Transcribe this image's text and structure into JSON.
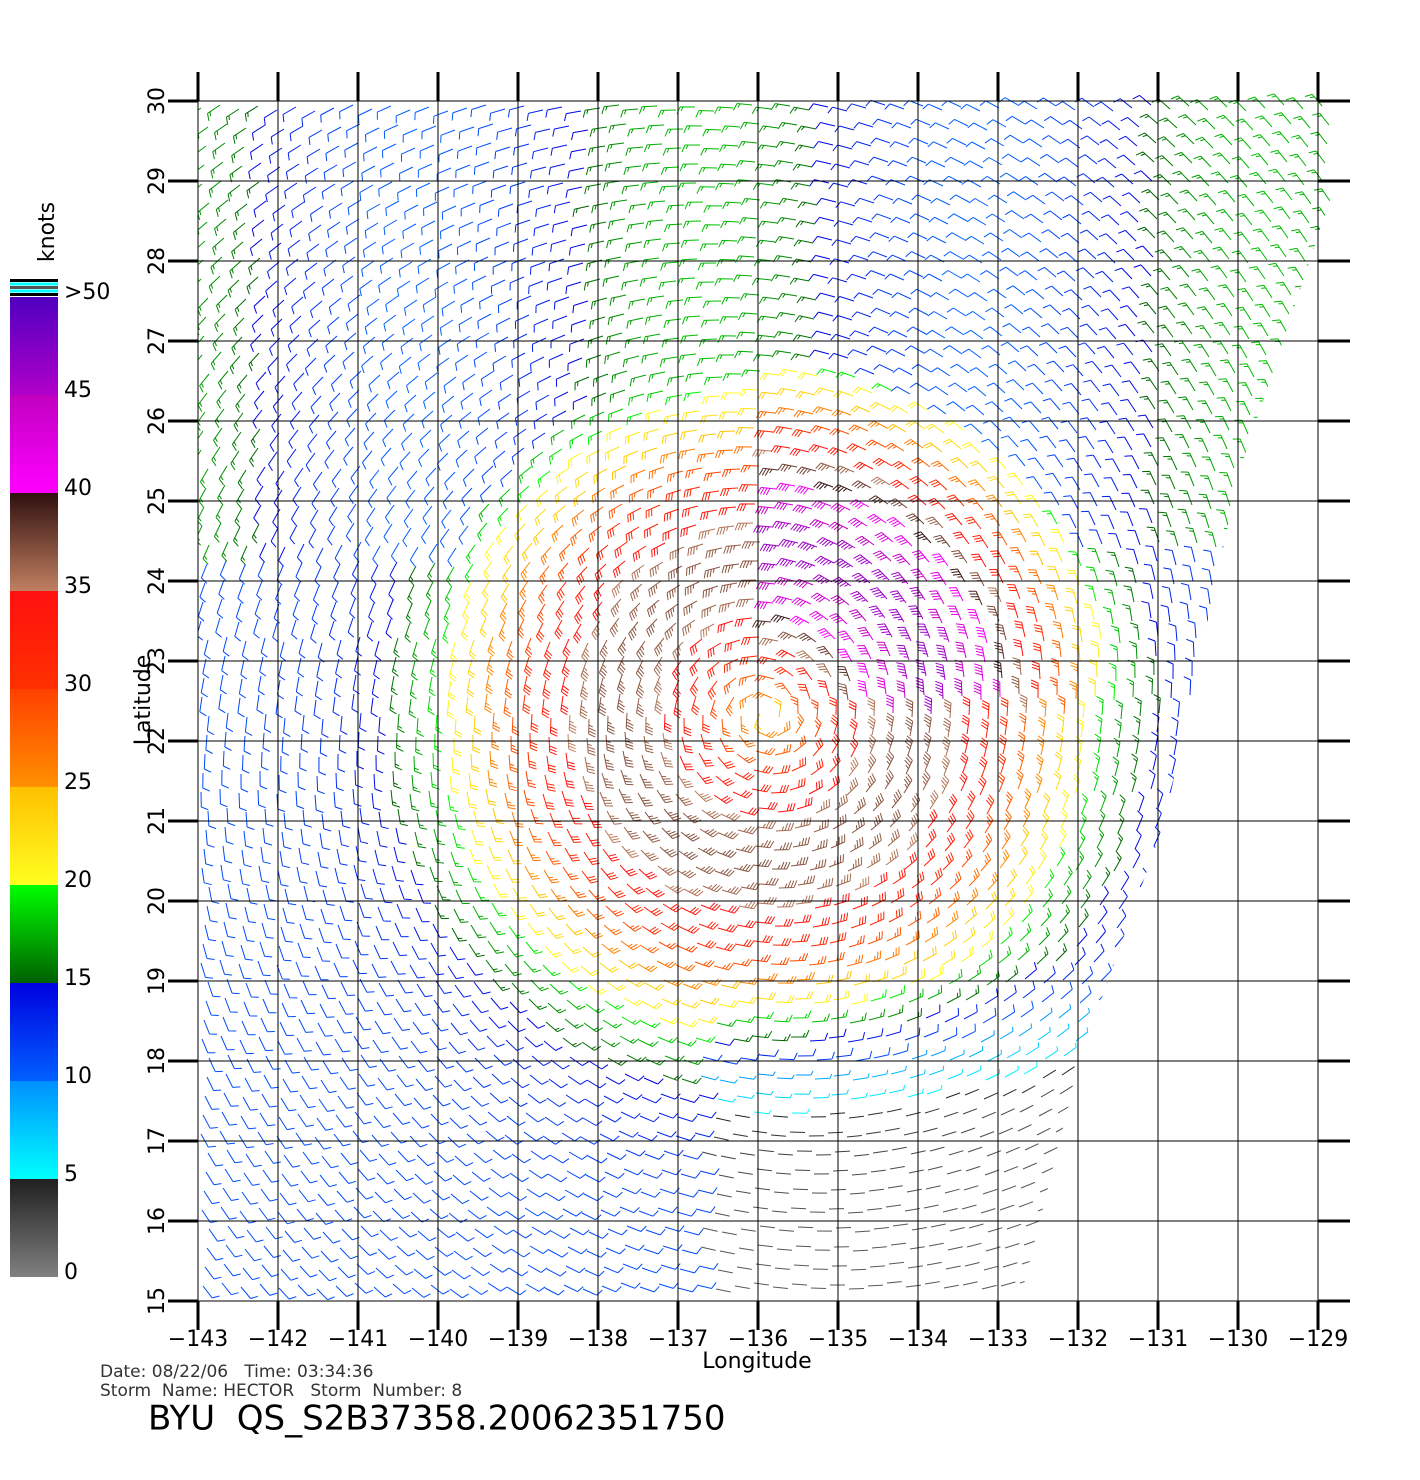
{
  "chart_data": {
    "type": "wind_barbs",
    "xlabel": "Longitude",
    "ylabel": "Latitude",
    "xlim": [
      -143,
      -129
    ],
    "ylim": [
      15,
      30
    ],
    "xticks": [
      {
        "value": -143,
        "label": "−143"
      },
      {
        "value": -142,
        "label": "−142"
      },
      {
        "value": -141,
        "label": "−141"
      },
      {
        "value": -140,
        "label": "−140"
      },
      {
        "value": -139,
        "label": "−139"
      },
      {
        "value": -138,
        "label": "−138"
      },
      {
        "value": -137,
        "label": "−137"
      },
      {
        "value": -136,
        "label": "−136"
      },
      {
        "value": -135,
        "label": "−135"
      },
      {
        "value": -134,
        "label": "−134"
      },
      {
        "value": -133,
        "label": "−133"
      },
      {
        "value": -132,
        "label": "−132"
      },
      {
        "value": -131,
        "label": "−131"
      },
      {
        "value": -130,
        "label": "−130"
      },
      {
        "value": -129,
        "label": "−129"
      }
    ],
    "yticks": [
      15,
      16,
      17,
      18,
      19,
      20,
      21,
      22,
      23,
      24,
      25,
      26,
      27,
      28,
      29,
      30
    ],
    "grid": true,
    "colorbar": {
      "label": "knots",
      "lim": [
        0,
        50
      ],
      "ticks": [
        0,
        5,
        10,
        15,
        20,
        25,
        30,
        35,
        40,
        45,
        {
          "value": 50,
          "label": ">50"
        }
      ],
      "colors": [
        [
          "#808080",
          "#202020"
        ],
        [
          "#00ffff",
          "#0090ff"
        ],
        [
          "#0060ff",
          "#0000e0"
        ],
        [
          "#006000",
          "#00ff00"
        ],
        [
          "#ffff20",
          "#ffc000"
        ],
        [
          "#ff9000",
          "#ff4000"
        ],
        [
          "#ff3000",
          "#ff1010"
        ],
        [
          "#c08060",
          "#301010"
        ],
        [
          "#ff00ff",
          "#c000c0"
        ],
        [
          "#b000c8",
          "#5000c0"
        ]
      ]
    },
    "footer": {
      "date_line": "Date: 08/22/06   Time: 03:34:36",
      "storm_line": "Storm  Name: HECTOR   Storm  Number: 8",
      "file_id": "BYU  QS_S2B37358.20062351750"
    }
  }
}
